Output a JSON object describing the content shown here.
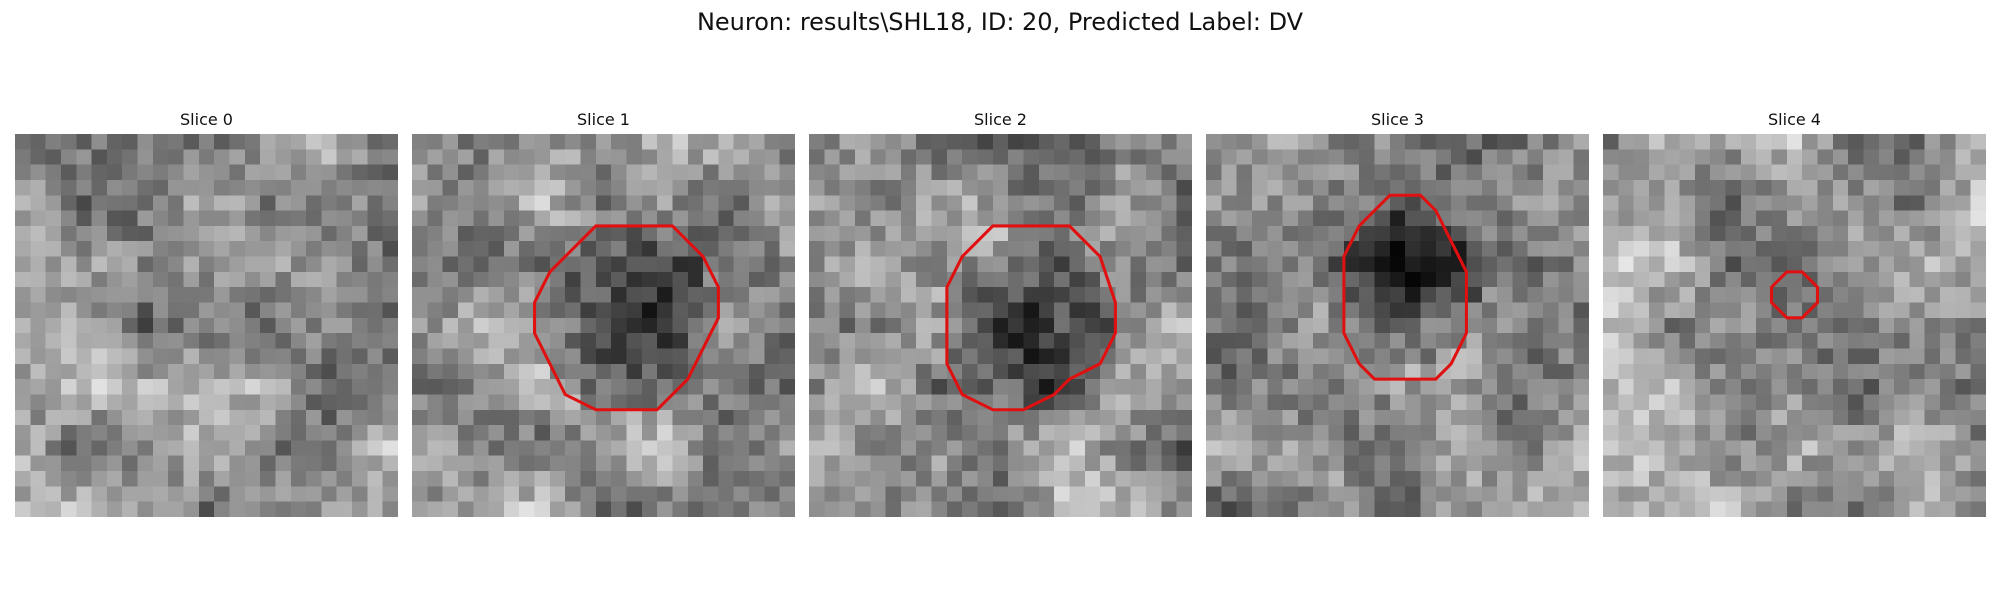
{
  "figure": {
    "title": "Neuron: results\\SHL18, ID: 20, Predicted Label: DV"
  },
  "colors": {
    "contour": "#e01010",
    "background": "#ffffff"
  },
  "panels": [
    {
      "label": "Slice 0",
      "seed": 11,
      "dark_core": false,
      "contour": []
    },
    {
      "label": "Slice 1",
      "seed": 23,
      "dark_core": true,
      "contour": [
        [
          14,
          6
        ],
        [
          17,
          6
        ],
        [
          19,
          8
        ],
        [
          20,
          10
        ],
        [
          20,
          12
        ],
        [
          19,
          14
        ],
        [
          18,
          16
        ],
        [
          17,
          17
        ],
        [
          16,
          18
        ],
        [
          14,
          18
        ],
        [
          12,
          18
        ],
        [
          10,
          17
        ],
        [
          9,
          15
        ],
        [
          8,
          13
        ],
        [
          8,
          11
        ],
        [
          9,
          9
        ],
        [
          10,
          8
        ],
        [
          12,
          6
        ]
      ]
    },
    {
      "label": "Slice 2",
      "seed": 37,
      "dark_core": true,
      "contour": [
        [
          12,
          6
        ],
        [
          17,
          6
        ],
        [
          19,
          8
        ],
        [
          20,
          11
        ],
        [
          20,
          13
        ],
        [
          19,
          15
        ],
        [
          17,
          16
        ],
        [
          16,
          17
        ],
        [
          14,
          18
        ],
        [
          12,
          18
        ],
        [
          10,
          17
        ],
        [
          9,
          15
        ],
        [
          9,
          12
        ],
        [
          9,
          10
        ],
        [
          10,
          8
        ]
      ]
    },
    {
      "label": "Slice 3",
      "seed": 49,
      "dark_core": true,
      "contour": [
        [
          12,
          4
        ],
        [
          14,
          4
        ],
        [
          15,
          5
        ],
        [
          16,
          7
        ],
        [
          17,
          9
        ],
        [
          17,
          11
        ],
        [
          17,
          13
        ],
        [
          16,
          15
        ],
        [
          15,
          16
        ],
        [
          13,
          16
        ],
        [
          11,
          16
        ],
        [
          10,
          15
        ],
        [
          9,
          13
        ],
        [
          9,
          11
        ],
        [
          9,
          8
        ],
        [
          10,
          6
        ],
        [
          11,
          5
        ]
      ]
    },
    {
      "label": "Slice 4",
      "seed": 61,
      "dark_core": false,
      "contour": [
        [
          13,
          9
        ],
        [
          14,
          10
        ],
        [
          14,
          11
        ],
        [
          13,
          12
        ],
        [
          12,
          12
        ],
        [
          11,
          11
        ],
        [
          11,
          10
        ],
        [
          12,
          9
        ]
      ]
    }
  ]
}
